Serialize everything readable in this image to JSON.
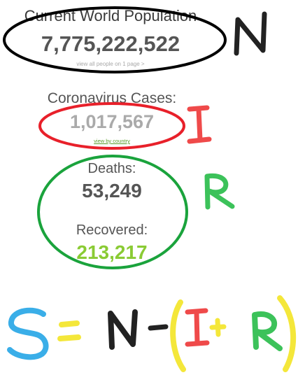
{
  "world_population": {
    "title": "Current World Population",
    "value": "7,775,222,522",
    "link": "view all people on 1 page >"
  },
  "coronavirus": {
    "label": "Coronavirus Cases:",
    "value": "1,017,567",
    "link": "view by country"
  },
  "deaths": {
    "label": "Deaths:",
    "value": "53,249"
  },
  "recovered": {
    "label": "Recovered:",
    "value": "213,217"
  },
  "colors": {
    "black_ellipse": "#000000",
    "red_ellipse": "#e8202a",
    "green_ellipse": "#1aa33c",
    "letter_n": "#222222",
    "letter_i": "#ef4a4a",
    "letter_r": "#3cc25a",
    "letter_s": "#3aaee8",
    "equals": "#f4e73a",
    "parens": "#f4e73a",
    "plus": "#f4e73a"
  }
}
